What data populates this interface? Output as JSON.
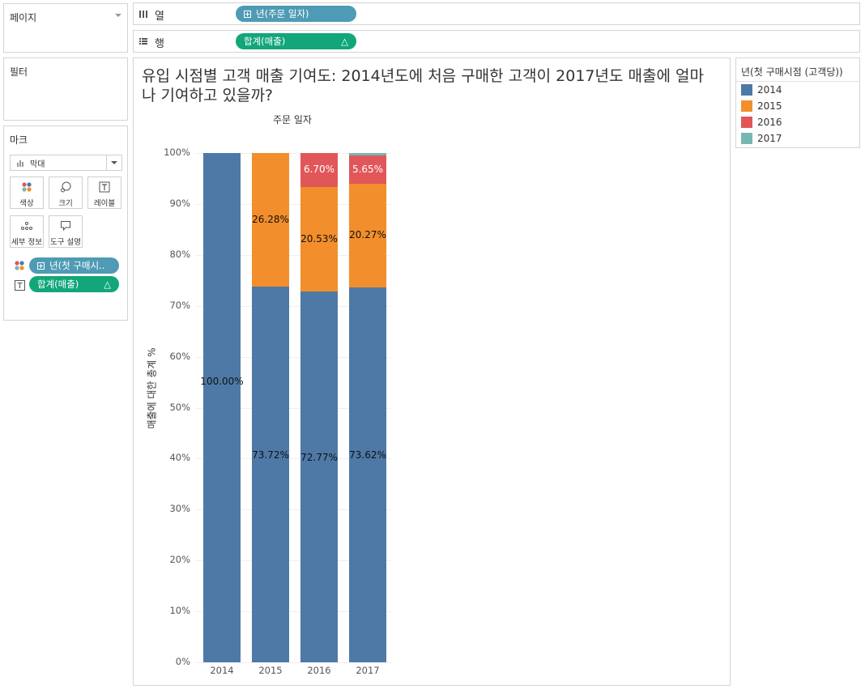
{
  "pages_card": {
    "title": "페이지"
  },
  "filters_card": {
    "title": "필터"
  },
  "marks_card": {
    "title": "마크",
    "mark_type": "막대",
    "buttons": {
      "color": "색상",
      "size": "크기",
      "label": "레이블",
      "detail": "세부 정보",
      "tooltip": "도구 설명"
    },
    "pills": {
      "color_field": "년(첫 구매시..",
      "label_field": "합계(매출)",
      "label_delta": "△"
    }
  },
  "shelves": {
    "columns": {
      "label": "열",
      "pill": "년(주문 일자)"
    },
    "rows": {
      "label": "행",
      "pill": "합계(매출)",
      "delta": "△"
    }
  },
  "colors": {
    "2014": "#4e79a7",
    "2015": "#f28e2b",
    "2016": "#e15759",
    "2017": "#76b7b2"
  },
  "legend": {
    "title": "년(첫 구매시점 (고객당))",
    "items": [
      {
        "label": "2014",
        "color": "#4e79a7"
      },
      {
        "label": "2015",
        "color": "#f28e2b"
      },
      {
        "label": "2016",
        "color": "#e15759"
      },
      {
        "label": "2017",
        "color": "#76b7b2"
      }
    ]
  },
  "chart_data": {
    "type": "bar",
    "stacked": true,
    "title": "유입 시점별 고객 매출 기여도: 2014년도에 처음 구매한 고객이 2017년도 매출에 얼마나 기여하고 있을까?",
    "header": "주문 일자",
    "ylabel": "매출에 대한 총계 %",
    "ylim": [
      0,
      100
    ],
    "yticks": [
      "0%",
      "10%",
      "20%",
      "30%",
      "40%",
      "50%",
      "60%",
      "70%",
      "80%",
      "90%",
      "100%"
    ],
    "categories": [
      "2014",
      "2015",
      "2016",
      "2017"
    ],
    "series": [
      {
        "name": "2014",
        "values": [
          100.0,
          73.72,
          72.77,
          73.62
        ],
        "labels": [
          "100.00%",
          "73.72%",
          "72.77%",
          "73.62%"
        ]
      },
      {
        "name": "2015",
        "values": [
          0,
          26.28,
          20.53,
          20.27
        ],
        "labels": [
          "",
          "26.28%",
          "20.53%",
          "20.27%"
        ]
      },
      {
        "name": "2016",
        "values": [
          0,
          0,
          6.7,
          5.65
        ],
        "labels": [
          "",
          "",
          "6.70%",
          "5.65%"
        ]
      },
      {
        "name": "2017",
        "values": [
          0,
          0,
          0,
          0.46
        ],
        "labels": [
          "",
          "",
          "",
          ""
        ]
      }
    ]
  }
}
